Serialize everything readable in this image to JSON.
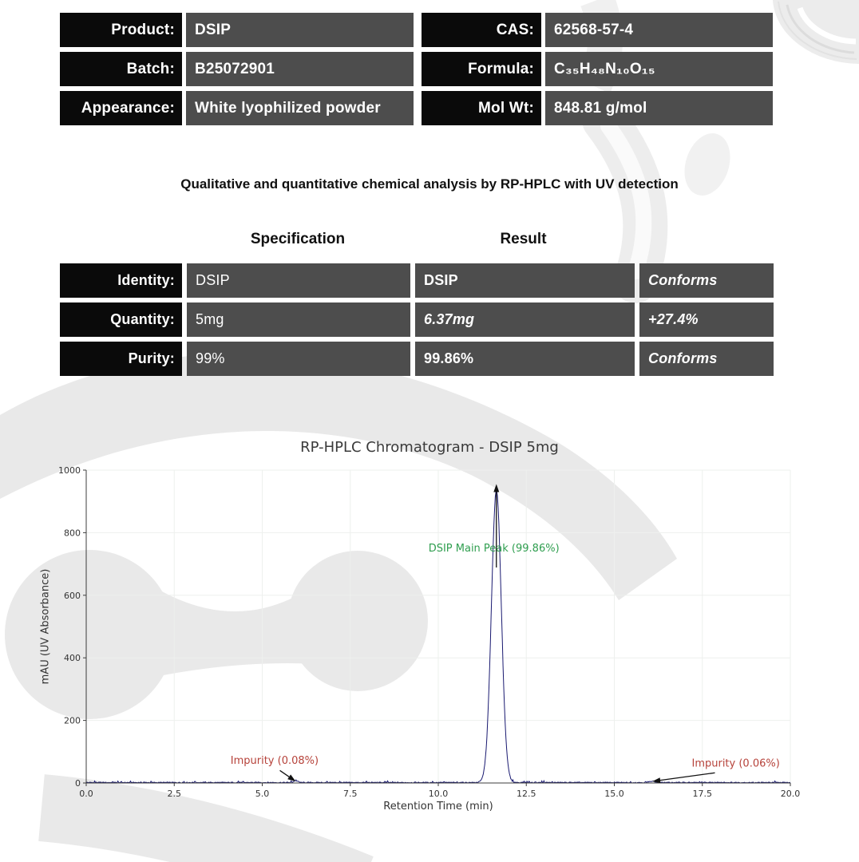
{
  "product_info": {
    "left": [
      {
        "label": "Product:",
        "value": "DSIP"
      },
      {
        "label": "Batch:",
        "value": "B25072901"
      },
      {
        "label": "Appearance:",
        "value": "White lyophilized powder"
      }
    ],
    "right": [
      {
        "label": "CAS:",
        "value": "62568-57-4"
      },
      {
        "label": "Formula:",
        "value": "C₃₅H₄₈N₁₀O₁₅"
      },
      {
        "label": "Mol Wt:",
        "value": "848.81 g/mol"
      }
    ]
  },
  "analysis_note": "Qualitative and quantitative chemical analysis by RP-HPLC with UV detection",
  "spec_table": {
    "col_headers": {
      "specification": "Specification",
      "result": "Result"
    },
    "rows": [
      {
        "label": "Identity:",
        "specification": "DSIP",
        "result": "DSIP",
        "status": "Conforms"
      },
      {
        "label": "Quantity:",
        "specification": "5mg",
        "result": "6.37mg",
        "status": "+27.4%"
      },
      {
        "label": "Purity:",
        "specification": "99%",
        "result": "99.86%",
        "status": "Conforms"
      }
    ]
  },
  "chart_data": {
    "type": "line",
    "title": "RP-HPLC Chromatogram - DSIP 5mg",
    "xlabel": "Retention Time (min)",
    "ylabel": "mAU (UV Absorbance)",
    "xlim": [
      0,
      20
    ],
    "ylim": [
      0,
      1000
    ],
    "xticks": [
      0.0,
      2.5,
      5.0,
      7.5,
      10.0,
      12.5,
      15.0,
      17.5,
      20.0
    ],
    "yticks": [
      0,
      200,
      400,
      600,
      800,
      1000
    ],
    "grid": true,
    "legend": "none",
    "line_color": "#191970",
    "main_peak": {
      "retention_time": 11.65,
      "height_mAU": 935,
      "sigma_min": 0.14,
      "label": "DSIP Main Peak (99.86%)",
      "label_color": "#2f9e4f",
      "label_x": 11.58,
      "label_y": 750
    },
    "impurities": [
      {
        "retention_time": 5.95,
        "height_mAU": 6,
        "label": "Impurity (0.08%)",
        "label_color": "#b6423a",
        "label_x": 5.35,
        "label_y": 72
      },
      {
        "retention_time": 16.08,
        "height_mAU": 5,
        "label": "Impurity (0.06%)",
        "label_color": "#b6423a",
        "label_x": 18.45,
        "label_y": 62
      }
    ],
    "baseline_noise_mAU": 4
  }
}
